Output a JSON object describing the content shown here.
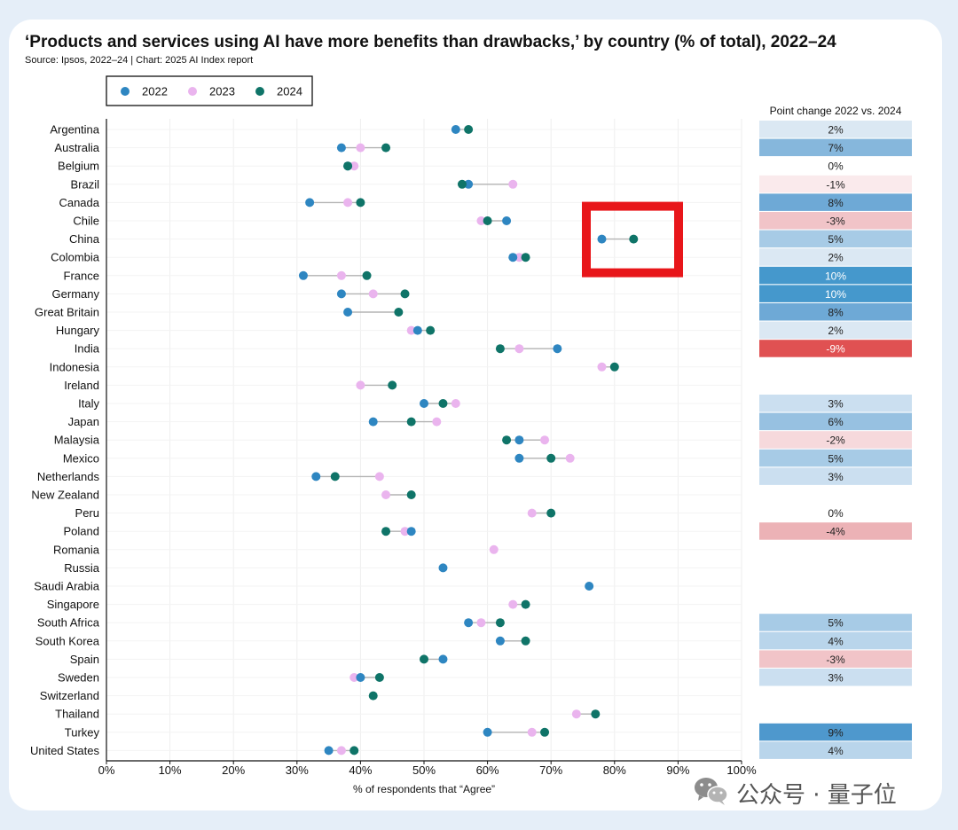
{
  "header": {
    "title": "‘Products and services using AI have more benefits than drawbacks,’ by country (% of total), 2022–24",
    "source": "Source: Ipsos, 2022–24 | Chart: 2025 AI Index report"
  },
  "watermark": {
    "text": "公众号 · 量子位",
    "icon": "wechat-icon"
  },
  "colors": {
    "y2022": "#2e86c1",
    "y2023": "#eab4ee",
    "y2024": "#0f7468",
    "connector": "#b3b3b3",
    "highlight_box": "#e8161a",
    "grid": "#eeeeee"
  },
  "chart_data": {
    "type": "scatter",
    "subtype": "dot-plot",
    "title": "‘Products and services using AI have more benefits than drawbacks,’ by country (% of total), 2022–24",
    "xlabel": "% of respondents that “Agree”",
    "xlim": [
      0,
      100
    ],
    "xticks": [
      "0%",
      "10%",
      "20%",
      "30%",
      "40%",
      "50%",
      "60%",
      "70%",
      "80%",
      "90%",
      "100%"
    ],
    "legend": {
      "placement": "top-left",
      "entries": [
        "2022",
        "2023",
        "2024"
      ]
    },
    "grid": true,
    "change_column_title": "Point change 2022 vs. 2024",
    "highlight_country": "China",
    "rows": [
      {
        "country": "Argentina",
        "y2022": 55,
        "y2023": null,
        "y2024": 57,
        "change": 2,
        "change_label": "2%"
      },
      {
        "country": "Australia",
        "y2022": 37,
        "y2023": 40,
        "y2024": 44,
        "change": 7,
        "change_label": "7%"
      },
      {
        "country": "Belgium",
        "y2022": 38,
        "y2023": 39,
        "y2024": 38,
        "change": 0,
        "change_label": "0%"
      },
      {
        "country": "Brazil",
        "y2022": 57,
        "y2023": 64,
        "y2024": 56,
        "change": -1,
        "change_label": "-1%"
      },
      {
        "country": "Canada",
        "y2022": 32,
        "y2023": 38,
        "y2024": 40,
        "change": 8,
        "change_label": "8%"
      },
      {
        "country": "Chile",
        "y2022": 63,
        "y2023": 59,
        "y2024": 60,
        "change": -3,
        "change_label": "-3%"
      },
      {
        "country": "China",
        "y2022": 78,
        "y2023": null,
        "y2024": 83,
        "change": 5,
        "change_label": "5%"
      },
      {
        "country": "Colombia",
        "y2022": 64,
        "y2023": 65,
        "y2024": 66,
        "change": 2,
        "change_label": "2%"
      },
      {
        "country": "France",
        "y2022": 31,
        "y2023": 37,
        "y2024": 41,
        "change": 10,
        "change_label": "10%"
      },
      {
        "country": "Germany",
        "y2022": 37,
        "y2023": 42,
        "y2024": 47,
        "change": 10,
        "change_label": "10%"
      },
      {
        "country": "Great Britain",
        "y2022": 38,
        "y2023": null,
        "y2024": 46,
        "change": 8,
        "change_label": "8%"
      },
      {
        "country": "Hungary",
        "y2022": 49,
        "y2023": 48,
        "y2024": 51,
        "change": 2,
        "change_label": "2%"
      },
      {
        "country": "India",
        "y2022": 71,
        "y2023": 65,
        "y2024": 62,
        "change": -9,
        "change_label": "-9%"
      },
      {
        "country": "Indonesia",
        "y2022": null,
        "y2023": 78,
        "y2024": 80,
        "change": null,
        "change_label": ""
      },
      {
        "country": "Ireland",
        "y2022": null,
        "y2023": 40,
        "y2024": 45,
        "change": null,
        "change_label": ""
      },
      {
        "country": "Italy",
        "y2022": 50,
        "y2023": 55,
        "y2024": 53,
        "change": 3,
        "change_label": "3%"
      },
      {
        "country": "Japan",
        "y2022": 42,
        "y2023": 52,
        "y2024": 48,
        "change": 6,
        "change_label": "6%"
      },
      {
        "country": "Malaysia",
        "y2022": 65,
        "y2023": 69,
        "y2024": 63,
        "change": -2,
        "change_label": "-2%"
      },
      {
        "country": "Mexico",
        "y2022": 65,
        "y2023": 73,
        "y2024": 70,
        "change": 5,
        "change_label": "5%"
      },
      {
        "country": "Netherlands",
        "y2022": 33,
        "y2023": 43,
        "y2024": 36,
        "change": 3,
        "change_label": "3%"
      },
      {
        "country": "New Zealand",
        "y2022": null,
        "y2023": 44,
        "y2024": 48,
        "change": null,
        "change_label": ""
      },
      {
        "country": "Peru",
        "y2022": null,
        "y2023": 67,
        "y2024": 70,
        "change": 0,
        "change_label": "0%"
      },
      {
        "country": "Poland",
        "y2022": 48,
        "y2023": 47,
        "y2024": 44,
        "change": -4,
        "change_label": "-4%"
      },
      {
        "country": "Romania",
        "y2022": null,
        "y2023": 61,
        "y2024": null,
        "change": null,
        "change_label": ""
      },
      {
        "country": "Russia",
        "y2022": 53,
        "y2023": null,
        "y2024": null,
        "change": null,
        "change_label": ""
      },
      {
        "country": "Saudi Arabia",
        "y2022": 76,
        "y2023": null,
        "y2024": null,
        "change": null,
        "change_label": ""
      },
      {
        "country": "Singapore",
        "y2022": null,
        "y2023": 64,
        "y2024": 66,
        "change": null,
        "change_label": ""
      },
      {
        "country": "South Africa",
        "y2022": 57,
        "y2023": 59,
        "y2024": 62,
        "change": 5,
        "change_label": "5%"
      },
      {
        "country": "South Korea",
        "y2022": 62,
        "y2023": null,
        "y2024": 66,
        "change": 4,
        "change_label": "4%"
      },
      {
        "country": "Spain",
        "y2022": 53,
        "y2023": null,
        "y2024": 50,
        "change": -3,
        "change_label": "-3%"
      },
      {
        "country": "Sweden",
        "y2022": 40,
        "y2023": 39,
        "y2024": 43,
        "change": 3,
        "change_label": "3%"
      },
      {
        "country": "Switzerland",
        "y2022": null,
        "y2023": null,
        "y2024": 42,
        "change": null,
        "change_label": ""
      },
      {
        "country": "Thailand",
        "y2022": null,
        "y2023": 74,
        "y2024": 77,
        "change": null,
        "change_label": ""
      },
      {
        "country": "Turkey",
        "y2022": 60,
        "y2023": 67,
        "y2024": 69,
        "change": 9,
        "change_label": "9%"
      },
      {
        "country": "United States",
        "y2022": 35,
        "y2023": 37,
        "y2024": 39,
        "change": 4,
        "change_label": "4%"
      }
    ]
  }
}
